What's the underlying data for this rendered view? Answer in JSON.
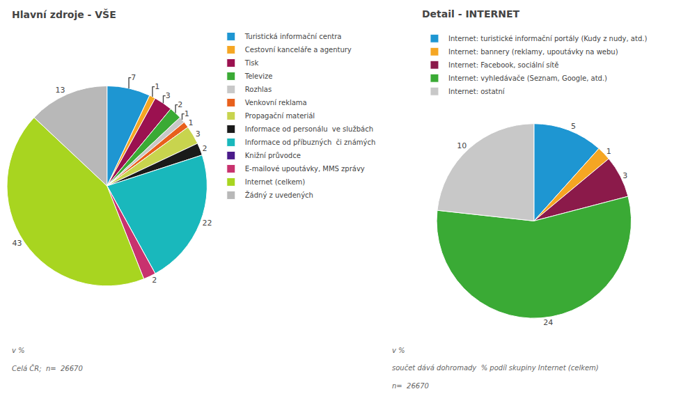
{
  "chart_data": [
    {
      "type": "pie",
      "title": "Hlavní zdroje - VŠE",
      "categories": [
        "Turistická informační centra",
        "Cestovní kanceláře a agentury",
        "Tisk",
        "Televize",
        "Rozhlas",
        "Venkovní reklama",
        "Propagační materiál",
        "Informace od personálu  ve službách",
        "Informace od příbuzných  či známých",
        "Knižní průvodce",
        "E-mailové upoutávky, MMS zprávy",
        "Internet (celkem)",
        "Žádný z uvedených"
      ],
      "values": [
        7,
        1,
        3,
        2,
        1,
        1,
        3,
        2,
        22,
        0,
        2,
        43,
        13
      ],
      "colors": [
        "#1e96d2",
        "#f5a623",
        "#9b1150",
        "#3aaa35",
        "#c8c8c8",
        "#e8601c",
        "#c8d44e",
        "#1a1a1a",
        "#19b8bc",
        "#4a1a8a",
        "#c8326e",
        "#a8d520",
        "#b8b8b8"
      ],
      "data_labels": true,
      "legend": "right",
      "annotations": [
        "v %",
        "Celá ČR;  n=  26670"
      ]
    },
    {
      "type": "pie",
      "title": "Detail - INTERNET",
      "categories": [
        "Internet: turistické informační portály (Kudy z nudy, atd.)",
        "Internet: bannery (reklamy, upoutávky na webu)",
        "Internet: Facebook, sociální sítě",
        "Internet: vyhledávače (Seznam, Google, atd.)",
        "Internet: ostatní"
      ],
      "values": [
        5,
        1,
        3,
        24,
        10
      ],
      "colors": [
        "#1e96d2",
        "#f5a623",
        "#8b1a4a",
        "#3aaa35",
        "#c8c8c8"
      ],
      "data_labels": true,
      "legend": "top",
      "annotations": [
        "v %",
        "součet dává dohromady  % podíl skupiny Internet (celkem)",
        "n=  26670"
      ]
    }
  ]
}
